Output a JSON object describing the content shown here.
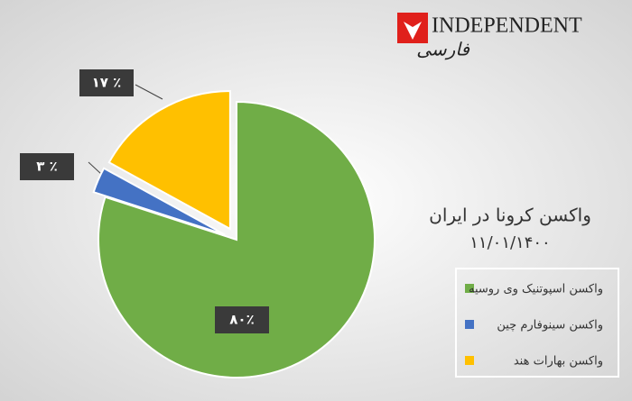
{
  "logo": {
    "name": "INDEPENDENT",
    "sub": "فارسی"
  },
  "chart_data": {
    "type": "pie",
    "title": "واکسن کرونا در ایران",
    "subtitle": "۱۱/۰۱/۱۴۰۰",
    "categories": [
      "واکسن اسپوتنیک وی روسیه",
      "واکسن سینوفارم چین",
      "واکسن بهارات هند"
    ],
    "values": [
      80,
      3,
      17
    ],
    "value_labels": [
      "۸۰٪",
      "۳ ٪",
      "۱۷ ٪"
    ],
    "colors": [
      "#70ad47",
      "#4472c4",
      "#ffc000"
    ]
  }
}
